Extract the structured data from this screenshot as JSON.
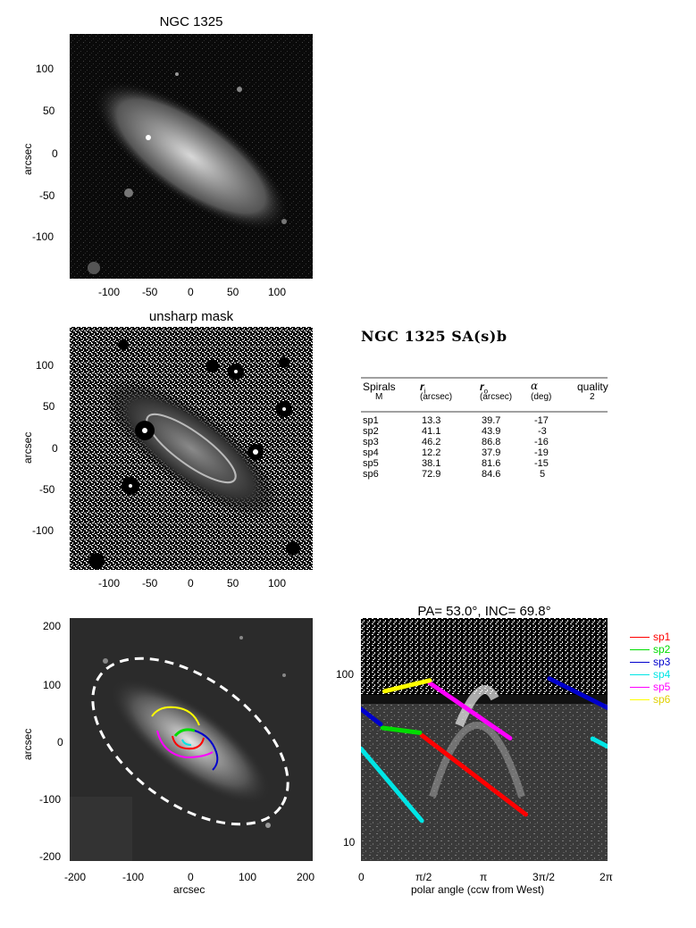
{
  "panel1": {
    "title": "NGC 1325",
    "ylabel": "arcsec",
    "xticks": [
      "-100",
      "-50",
      "0",
      "50",
      "100"
    ],
    "yticks": [
      "100",
      "50",
      "0",
      "-50",
      "-100"
    ]
  },
  "panel2": {
    "title": "unsharp mask",
    "ylabel": "arcsec",
    "xticks": [
      "-100",
      "-50",
      "0",
      "50",
      "100"
    ],
    "yticks": [
      "100",
      "50",
      "0",
      "-50",
      "-100"
    ]
  },
  "panel3": {
    "xlabel": "arcsec",
    "ylabel": "arcsec",
    "xticks": [
      "-200",
      "-100",
      "0",
      "100",
      "200"
    ],
    "yticks": [
      "200",
      "100",
      "0",
      "-100",
      "-200"
    ]
  },
  "panel4": {
    "title": "PA=  53.0°, INC=  69.8°",
    "xlabel": "polar angle (ccw from West)",
    "xticks": [
      "0",
      "π/2",
      "π",
      "3π/2",
      "2π"
    ],
    "yticks": [
      "100",
      "10"
    ]
  },
  "heading": "NGC 1325  SA(s)b",
  "table": {
    "header1": [
      "Spirals",
      "r",
      "r",
      "α",
      "quality"
    ],
    "header_sub": [
      "i",
      "o"
    ],
    "header2": [
      "M",
      "(arcsec)",
      "(arcsec)",
      "(deg)",
      "2"
    ],
    "rows": [
      {
        "name": "sp1",
        "ri": "13.3",
        "ro": "39.7",
        "alpha": "-17"
      },
      {
        "name": "sp2",
        "ri": "41.1",
        "ro": "43.9",
        "alpha": "-3"
      },
      {
        "name": "sp3",
        "ri": "46.2",
        "ro": "86.8",
        "alpha": "-16"
      },
      {
        "name": "sp4",
        "ri": "12.2",
        "ro": "37.9",
        "alpha": "-19"
      },
      {
        "name": "sp5",
        "ri": "38.1",
        "ro": "81.6",
        "alpha": "-15"
      },
      {
        "name": "sp6",
        "ri": "72.9",
        "ro": "84.6",
        "alpha": "5"
      }
    ]
  },
  "legend": [
    {
      "label": "sp1",
      "color": "#ff0000"
    },
    {
      "label": "sp2",
      "color": "#00dd00"
    },
    {
      "label": "sp3",
      "color": "#0000cc"
    },
    {
      "label": "sp4",
      "color": "#00e5e5"
    },
    {
      "label": "sp5",
      "color": "#ff00ff"
    },
    {
      "label": "sp6",
      "color": "#ffff00"
    }
  ],
  "chart_data": {
    "type": "line",
    "title": "PA=  53.0°, INC=  69.8°",
    "xlabel": "polar angle (ccw from West)",
    "ylabel": "",
    "xlim": [
      0,
      6.2832
    ],
    "ylim": [
      7,
      200
    ],
    "yscale": "log",
    "series": [
      {
        "name": "sp1",
        "x": [
          1.55,
          4.2
        ],
        "y": [
          39.7,
          13.3
        ]
      },
      {
        "name": "sp2",
        "x": [
          0.55,
          1.5
        ],
        "y": [
          43.9,
          41.1
        ]
      },
      {
        "name": "sp3",
        "x": [
          0.0,
          0.5,
          4.8,
          6.28
        ],
        "y": [
          57,
          46.2,
          86.8,
          58
        ]
      },
      {
        "name": "sp4",
        "x": [
          0.0,
          1.55,
          5.9,
          6.28
        ],
        "y": [
          33,
          12.2,
          37.9,
          34
        ]
      },
      {
        "name": "sp5",
        "x": [
          1.75,
          3.8
        ],
        "y": [
          81.6,
          38.1
        ]
      },
      {
        "name": "sp6",
        "x": [
          0.6,
          1.75
        ],
        "y": [
          72.9,
          84.6
        ]
      }
    ]
  }
}
